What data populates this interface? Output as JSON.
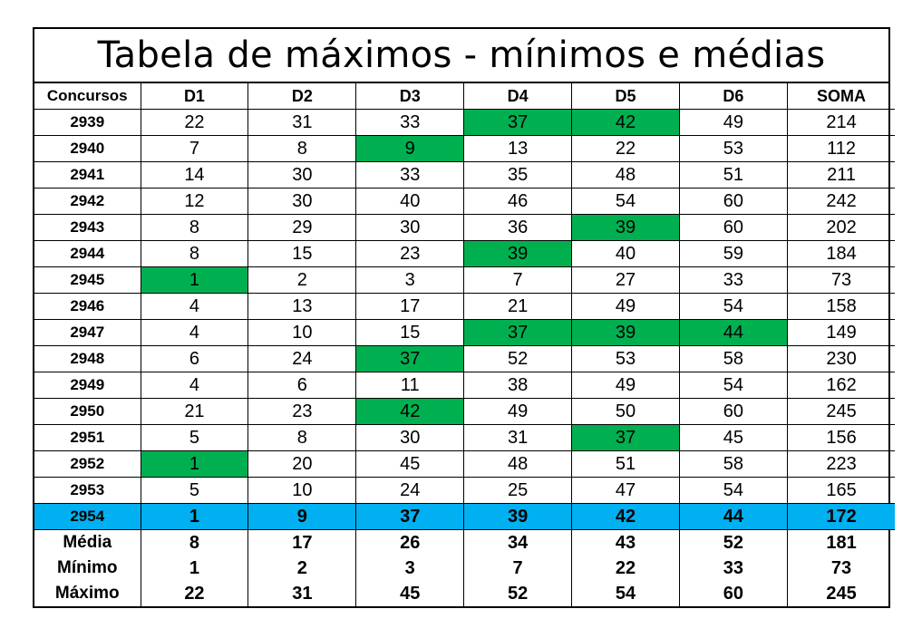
{
  "title": "Tabela de máximos - mínimos e médias",
  "headers": [
    "Concursos",
    "D1",
    "D2",
    "D3",
    "D4",
    "D5",
    "D6",
    "SOMA"
  ],
  "rows": [
    {
      "concurso": "2939",
      "values": [
        "22",
        "31",
        "33",
        "37",
        "42",
        "49",
        "214"
      ],
      "highlight": [
        3,
        4
      ]
    },
    {
      "concurso": "2940",
      "values": [
        "7",
        "8",
        "9",
        "13",
        "22",
        "53",
        "112"
      ],
      "highlight": [
        2
      ]
    },
    {
      "concurso": "2941",
      "values": [
        "14",
        "30",
        "33",
        "35",
        "48",
        "51",
        "211"
      ],
      "highlight": []
    },
    {
      "concurso": "2942",
      "values": [
        "12",
        "30",
        "40",
        "46",
        "54",
        "60",
        "242"
      ],
      "highlight": []
    },
    {
      "concurso": "2943",
      "values": [
        "8",
        "29",
        "30",
        "36",
        "39",
        "60",
        "202"
      ],
      "highlight": [
        4
      ]
    },
    {
      "concurso": "2944",
      "values": [
        "8",
        "15",
        "23",
        "39",
        "40",
        "59",
        "184"
      ],
      "highlight": [
        3
      ]
    },
    {
      "concurso": "2945",
      "values": [
        "1",
        "2",
        "3",
        "7",
        "27",
        "33",
        "73"
      ],
      "highlight": [
        0
      ]
    },
    {
      "concurso": "2946",
      "values": [
        "4",
        "13",
        "17",
        "21",
        "49",
        "54",
        "158"
      ],
      "highlight": []
    },
    {
      "concurso": "2947",
      "values": [
        "4",
        "10",
        "15",
        "37",
        "39",
        "44",
        "149"
      ],
      "highlight": [
        3,
        4,
        5
      ]
    },
    {
      "concurso": "2948",
      "values": [
        "6",
        "24",
        "37",
        "52",
        "53",
        "58",
        "230"
      ],
      "highlight": [
        2
      ]
    },
    {
      "concurso": "2949",
      "values": [
        "4",
        "6",
        "11",
        "38",
        "49",
        "54",
        "162"
      ],
      "highlight": []
    },
    {
      "concurso": "2950",
      "values": [
        "21",
        "23",
        "42",
        "49",
        "50",
        "60",
        "245"
      ],
      "highlight": [
        2
      ]
    },
    {
      "concurso": "2951",
      "values": [
        "5",
        "8",
        "30",
        "31",
        "37",
        "45",
        "156"
      ],
      "highlight": [
        4
      ]
    },
    {
      "concurso": "2952",
      "values": [
        "1",
        "20",
        "45",
        "48",
        "51",
        "58",
        "223"
      ],
      "highlight": [
        0
      ]
    },
    {
      "concurso": "2953",
      "values": [
        "5",
        "10",
        "24",
        "25",
        "47",
        "54",
        "165"
      ],
      "highlight": []
    }
  ],
  "current": {
    "concurso": "2954",
    "values": [
      "1",
      "9",
      "37",
      "39",
      "42",
      "44",
      "172"
    ]
  },
  "stats": [
    {
      "label": "Média",
      "values": [
        "8",
        "17",
        "26",
        "34",
        "43",
        "52",
        "181"
      ]
    },
    {
      "label": "Mínimo",
      "values": [
        "1",
        "2",
        "3",
        "7",
        "22",
        "33",
        "73"
      ]
    },
    {
      "label": "Máximo",
      "values": [
        "22",
        "31",
        "45",
        "52",
        "54",
        "60",
        "245"
      ]
    }
  ],
  "colors": {
    "highlight_green": "#00b050",
    "current_row_blue": "#00b0f0"
  }
}
